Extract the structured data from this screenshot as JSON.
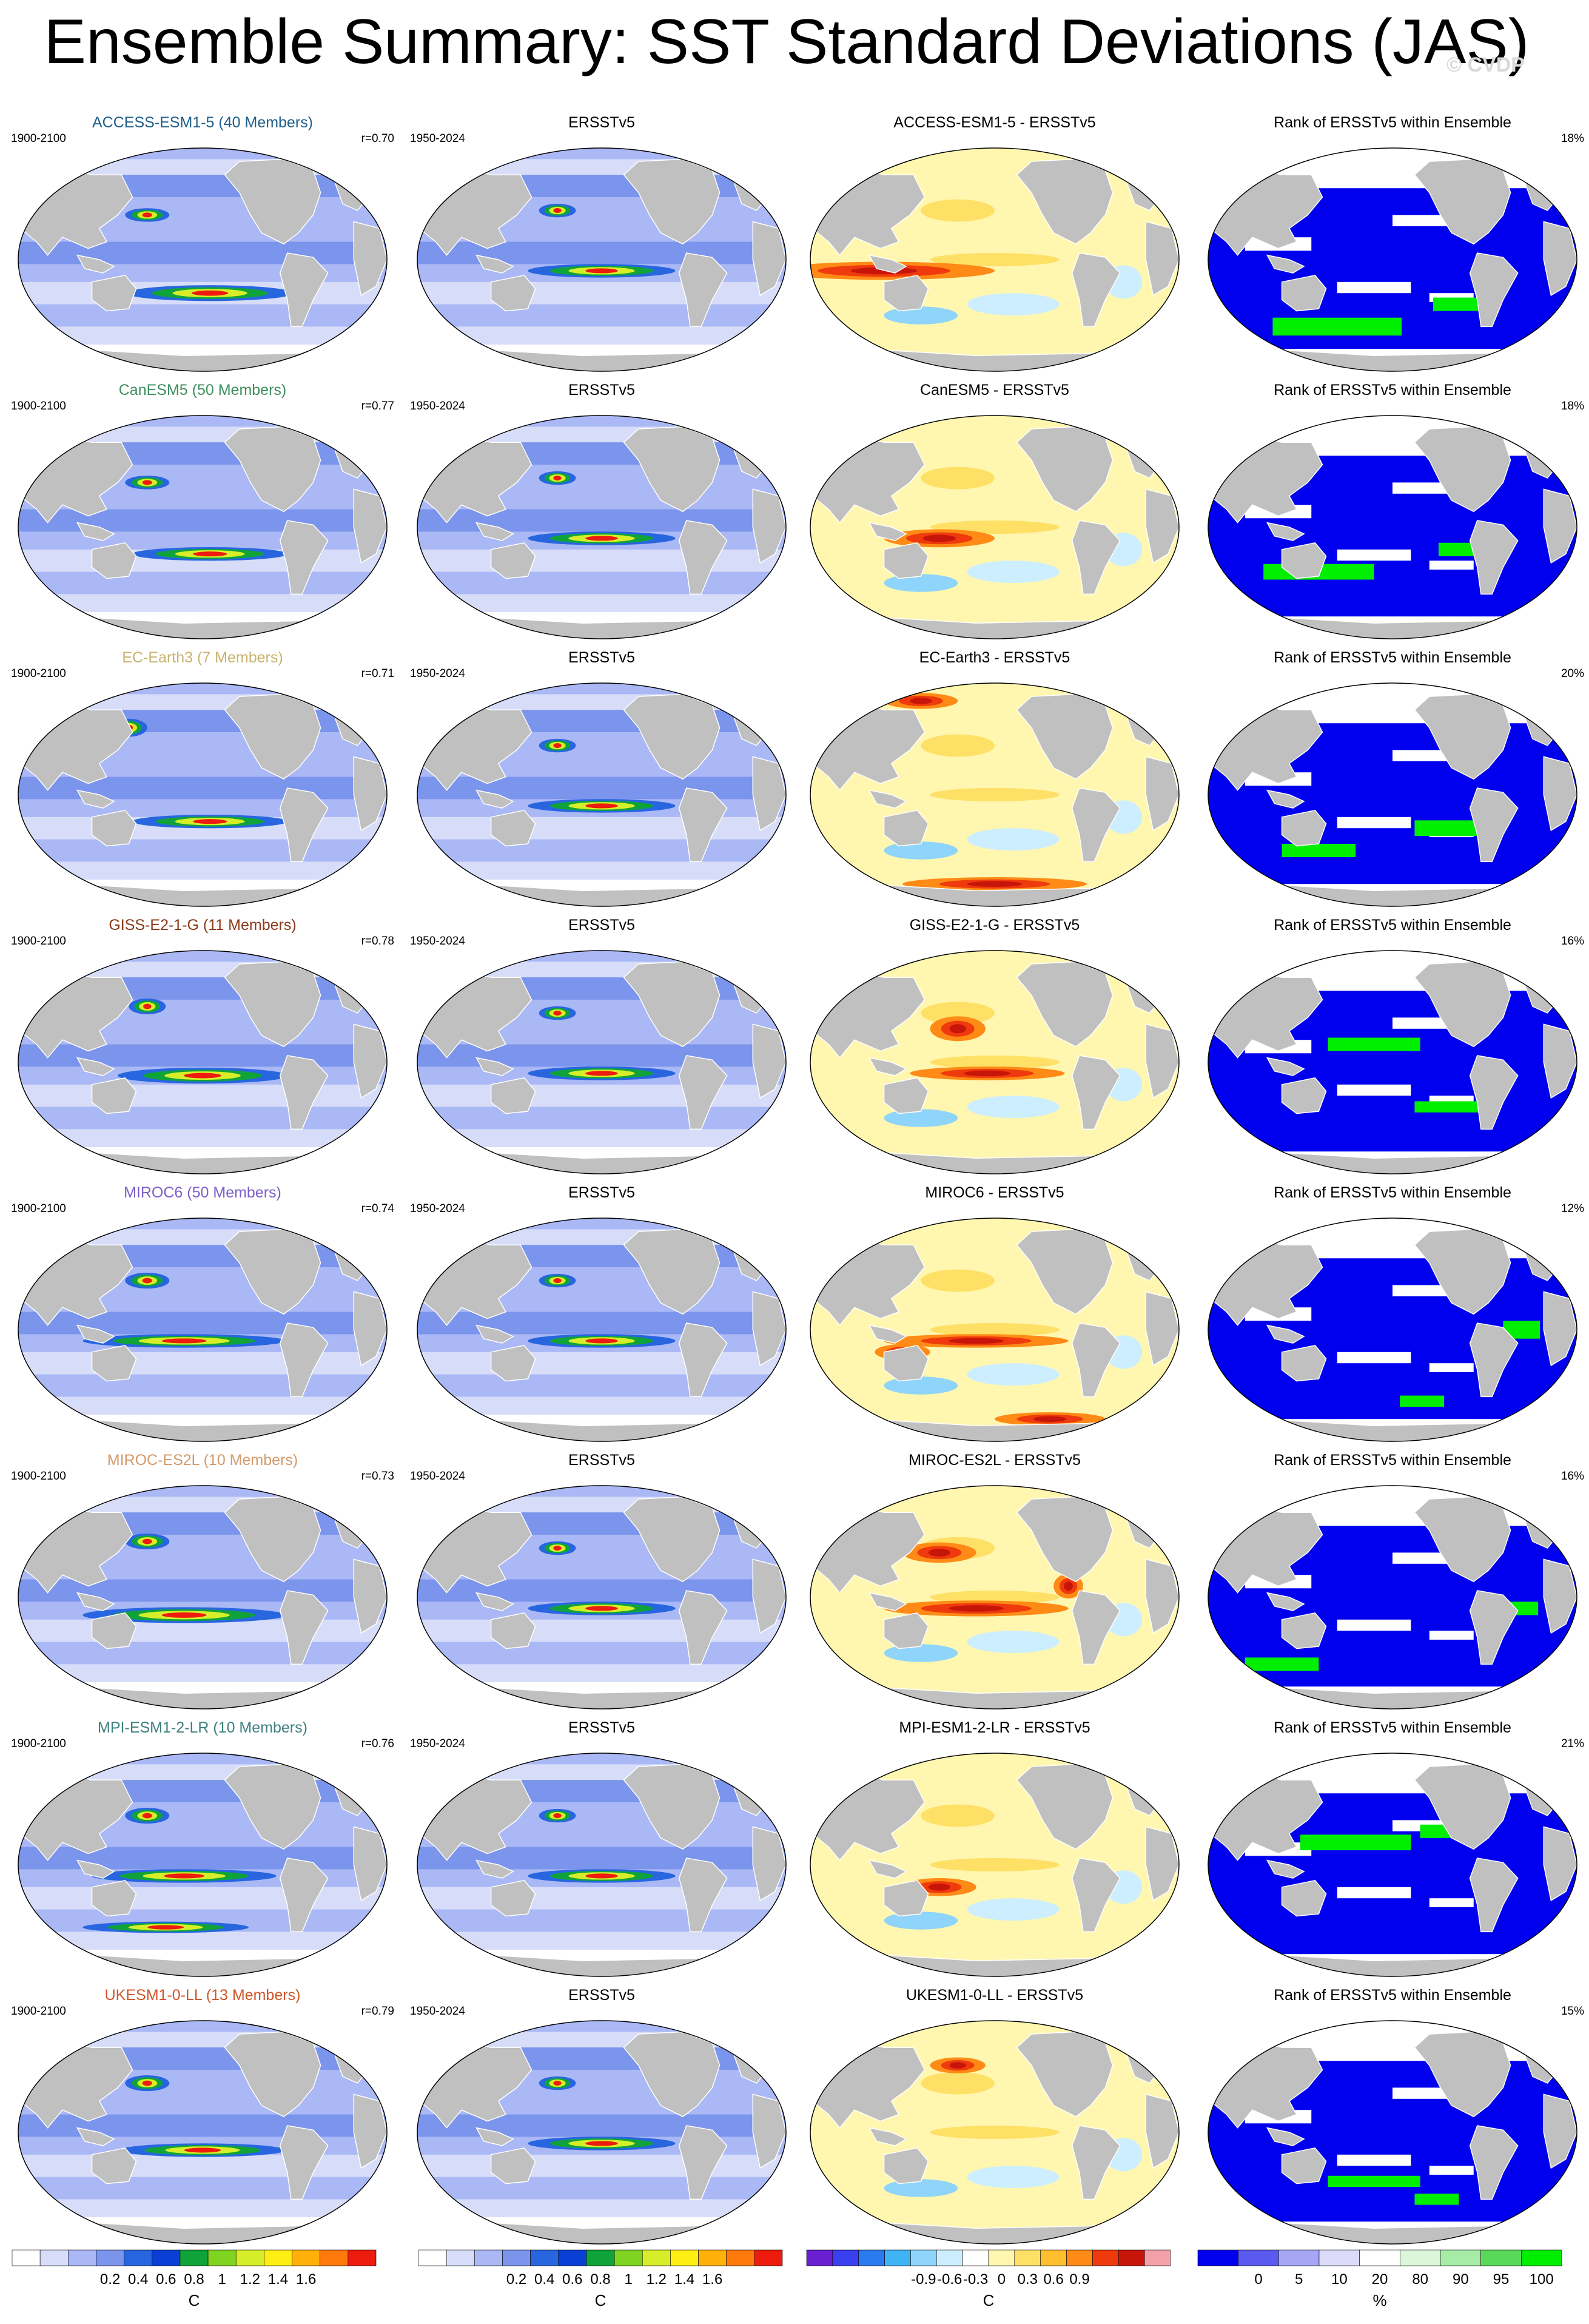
{
  "title": "Ensemble Summary: SST Standard Deviations (JAS)",
  "watermark": "© CVDP",
  "chart_data": [
    {
      "type": "heatmap",
      "row": 0,
      "col": 0,
      "title": "ACCESS-ESM1-5 (40 Members)",
      "left_label": "1900-2100",
      "right_label": "r=0.70",
      "title_color": "#1f5f8b",
      "scheme": "std",
      "hot": [
        [
          0.52,
          0.65,
          0.45,
          0.06
        ],
        [
          0.35,
          0.3,
          0.12,
          0.05
        ],
        [
          0.72,
          0.22,
          0.1,
          0.06
        ]
      ]
    },
    {
      "type": "heatmap",
      "row": 0,
      "col": 1,
      "title": "ERSSTv5",
      "left_label": "1950-2024",
      "right_label": "",
      "title_color": "#000000",
      "scheme": "std",
      "hot": [
        [
          0.5,
          0.55,
          0.4,
          0.05
        ],
        [
          0.38,
          0.28,
          0.1,
          0.05
        ]
      ]
    },
    {
      "type": "heatmap",
      "row": 0,
      "col": 2,
      "title": "ACCESS-ESM1-5 - ERSSTv5",
      "left_label": "",
      "right_label": "",
      "title_color": "#000000",
      "scheme": "diff",
      "hot": [
        [
          0.2,
          0.55,
          0.6,
          0.07
        ],
        [
          0.72,
          0.22,
          0.12,
          0.07
        ]
      ]
    },
    {
      "type": "heatmap",
      "row": 0,
      "col": 3,
      "title": "Rank of ERSSTv5 within Ensemble",
      "left_label": "",
      "right_label": "18%",
      "title_color": "#000000",
      "scheme": "rank",
      "hot": [
        [
          0.35,
          0.8,
          0.35,
          0.08
        ],
        [
          0.7,
          0.7,
          0.18,
          0.06
        ]
      ]
    },
    {
      "type": "heatmap",
      "row": 1,
      "col": 0,
      "title": "CanESM5 (50 Members)",
      "left_label": "1900-2100",
      "right_label": "r=0.77",
      "title_color": "#3f8f5f",
      "scheme": "std",
      "hot": [
        [
          0.52,
          0.62,
          0.42,
          0.05
        ],
        [
          0.35,
          0.3,
          0.12,
          0.05
        ],
        [
          0.74,
          0.2,
          0.08,
          0.06
        ]
      ]
    },
    {
      "type": "heatmap",
      "row": 1,
      "col": 1,
      "title": "ERSSTv5",
      "left_label": "1950-2024",
      "right_label": "",
      "title_color": "#000000",
      "scheme": "std",
      "hot": [
        [
          0.5,
          0.55,
          0.4,
          0.05
        ],
        [
          0.38,
          0.28,
          0.1,
          0.05
        ]
      ]
    },
    {
      "type": "heatmap",
      "row": 1,
      "col": 2,
      "title": "CanESM5 - ERSSTv5",
      "left_label": "",
      "right_label": "",
      "title_color": "#000000",
      "scheme": "diff",
      "hot": [
        [
          0.72,
          0.2,
          0.1,
          0.07
        ],
        [
          0.35,
          0.55,
          0.3,
          0.07
        ]
      ]
    },
    {
      "type": "heatmap",
      "row": 1,
      "col": 3,
      "title": "Rank of ERSSTv5 within Ensemble",
      "left_label": "",
      "right_label": "18%",
      "title_color": "#000000",
      "scheme": "rank",
      "hot": [
        [
          0.3,
          0.7,
          0.3,
          0.07
        ],
        [
          0.7,
          0.6,
          0.15,
          0.06
        ]
      ]
    },
    {
      "type": "heatmap",
      "row": 2,
      "col": 0,
      "title": "EC-Earth3 (7 Members)",
      "left_label": "1900-2100",
      "right_label": "r=0.71",
      "title_color": "#c8b46e",
      "scheme": "std",
      "hot": [
        [
          0.52,
          0.62,
          0.42,
          0.05
        ],
        [
          0.3,
          0.2,
          0.1,
          0.07
        ],
        [
          0.72,
          0.16,
          0.08,
          0.06
        ]
      ]
    },
    {
      "type": "heatmap",
      "row": 2,
      "col": 1,
      "title": "ERSSTv5",
      "left_label": "1950-2024",
      "right_label": "",
      "title_color": "#000000",
      "scheme": "std",
      "hot": [
        [
          0.5,
          0.55,
          0.4,
          0.05
        ],
        [
          0.38,
          0.28,
          0.1,
          0.05
        ]
      ]
    },
    {
      "type": "heatmap",
      "row": 2,
      "col": 2,
      "title": "EC-Earth3 - ERSSTv5",
      "left_label": "",
      "right_label": "",
      "title_color": "#000000",
      "scheme": "diff",
      "hot": [
        [
          0.3,
          0.08,
          0.2,
          0.06
        ],
        [
          0.72,
          0.2,
          0.1,
          0.06
        ],
        [
          0.5,
          0.9,
          0.5,
          0.05
        ]
      ]
    },
    {
      "type": "heatmap",
      "row": 2,
      "col": 3,
      "title": "Rank of ERSSTv5 within Ensemble",
      "left_label": "",
      "right_label": "20%",
      "title_color": "#000000",
      "scheme": "rank",
      "hot": [
        [
          0.3,
          0.75,
          0.2,
          0.06
        ],
        [
          0.65,
          0.65,
          0.18,
          0.07
        ]
      ]
    },
    {
      "type": "heatmap",
      "row": 3,
      "col": 0,
      "title": "GISS-E2-1-G (11 Members)",
      "left_label": "1900-2100",
      "right_label": "r=0.78",
      "title_color": "#8b3a1a",
      "scheme": "std",
      "hot": [
        [
          0.5,
          0.56,
          0.46,
          0.06
        ],
        [
          0.35,
          0.25,
          0.1,
          0.06
        ],
        [
          0.72,
          0.22,
          0.08,
          0.05
        ]
      ]
    },
    {
      "type": "heatmap",
      "row": 3,
      "col": 1,
      "title": "ERSSTv5",
      "left_label": "1950-2024",
      "right_label": "",
      "title_color": "#000000",
      "scheme": "std",
      "hot": [
        [
          0.5,
          0.55,
          0.4,
          0.05
        ],
        [
          0.38,
          0.28,
          0.1,
          0.05
        ]
      ]
    },
    {
      "type": "heatmap",
      "row": 3,
      "col": 2,
      "title": "GISS-E2-1-G - ERSSTv5",
      "left_label": "",
      "right_label": "",
      "title_color": "#000000",
      "scheme": "diff",
      "hot": [
        [
          0.48,
          0.55,
          0.42,
          0.05
        ],
        [
          0.4,
          0.35,
          0.15,
          0.1
        ]
      ]
    },
    {
      "type": "heatmap",
      "row": 3,
      "col": 3,
      "title": "Rank of ERSSTv5 within Ensemble",
      "left_label": "",
      "right_label": "16%",
      "title_color": "#000000",
      "scheme": "rank",
      "hot": [
        [
          0.45,
          0.42,
          0.25,
          0.06
        ],
        [
          0.65,
          0.7,
          0.18,
          0.05
        ]
      ]
    },
    {
      "type": "heatmap",
      "row": 4,
      "col": 0,
      "title": "MIROC6 (50 Members)",
      "left_label": "1900-2100",
      "right_label": "r=0.74",
      "title_color": "#7b5fc9",
      "scheme": "std",
      "hot": [
        [
          0.45,
          0.55,
          0.55,
          0.05
        ],
        [
          0.35,
          0.28,
          0.12,
          0.06
        ],
        [
          0.74,
          0.2,
          0.08,
          0.05
        ]
      ]
    },
    {
      "type": "heatmap",
      "row": 4,
      "col": 1,
      "title": "ERSSTv5",
      "left_label": "1950-2024",
      "right_label": "",
      "title_color": "#000000",
      "scheme": "std",
      "hot": [
        [
          0.5,
          0.55,
          0.4,
          0.05
        ],
        [
          0.38,
          0.28,
          0.1,
          0.05
        ]
      ]
    },
    {
      "type": "heatmap",
      "row": 4,
      "col": 2,
      "title": "MIROC6 - ERSSTv5",
      "left_label": "",
      "right_label": "",
      "title_color": "#000000",
      "scheme": "diff",
      "hot": [
        [
          0.45,
          0.55,
          0.5,
          0.05
        ],
        [
          0.25,
          0.6,
          0.15,
          0.06
        ],
        [
          0.65,
          0.9,
          0.3,
          0.05
        ]
      ]
    },
    {
      "type": "heatmap",
      "row": 4,
      "col": 3,
      "title": "Rank of ERSSTv5 within Ensemble",
      "left_label": "",
      "right_label": "12%",
      "title_color": "#000000",
      "scheme": "rank",
      "hot": [
        [
          0.85,
          0.5,
          0.1,
          0.08
        ],
        [
          0.58,
          0.82,
          0.12,
          0.05
        ]
      ]
    },
    {
      "type": "heatmap",
      "row": 5,
      "col": 0,
      "title": "MIROC-ES2L (10 Members)",
      "left_label": "1900-2100",
      "right_label": "r=0.73",
      "title_color": "#d49a6a",
      "scheme": "std",
      "hot": [
        [
          0.45,
          0.58,
          0.55,
          0.06
        ],
        [
          0.35,
          0.25,
          0.12,
          0.06
        ],
        [
          0.72,
          0.22,
          0.08,
          0.05
        ]
      ]
    },
    {
      "type": "heatmap",
      "row": 5,
      "col": 1,
      "title": "ERSSTv5",
      "left_label": "1950-2024",
      "right_label": "",
      "title_color": "#000000",
      "scheme": "std",
      "hot": [
        [
          0.5,
          0.55,
          0.4,
          0.05
        ],
        [
          0.38,
          0.28,
          0.1,
          0.05
        ]
      ]
    },
    {
      "type": "heatmap",
      "row": 5,
      "col": 2,
      "title": "MIROC-ES2L - ERSSTv5",
      "left_label": "",
      "right_label": "",
      "title_color": "#000000",
      "scheme": "diff",
      "hot": [
        [
          0.45,
          0.55,
          0.5,
          0.06
        ],
        [
          0.35,
          0.3,
          0.2,
          0.08
        ],
        [
          0.7,
          0.45,
          0.08,
          0.1
        ]
      ]
    },
    {
      "type": "heatmap",
      "row": 5,
      "col": 3,
      "title": "Rank of ERSSTv5 within Ensemble",
      "left_label": "",
      "right_label": "16%",
      "title_color": "#000000",
      "scheme": "rank",
      "hot": [
        [
          0.2,
          0.8,
          0.2,
          0.06
        ],
        [
          0.82,
          0.55,
          0.15,
          0.06
        ]
      ]
    },
    {
      "type": "heatmap",
      "row": 6,
      "col": 0,
      "title": "MPI-ESM1-2-LR (10 Members)",
      "left_label": "1900-2100",
      "right_label": "r=0.76",
      "title_color": "#3f8080",
      "scheme": "std",
      "hot": [
        [
          0.45,
          0.55,
          0.5,
          0.05
        ],
        [
          0.35,
          0.28,
          0.12,
          0.06
        ],
        [
          0.4,
          0.78,
          0.45,
          0.04
        ]
      ]
    },
    {
      "type": "heatmap",
      "row": 6,
      "col": 1,
      "title": "ERSSTv5",
      "left_label": "1950-2024",
      "right_label": "",
      "title_color": "#000000",
      "scheme": "std",
      "hot": [
        [
          0.5,
          0.55,
          0.4,
          0.05
        ],
        [
          0.38,
          0.28,
          0.1,
          0.05
        ]
      ]
    },
    {
      "type": "heatmap",
      "row": 6,
      "col": 2,
      "title": "MPI-ESM1-2-LR - ERSSTv5",
      "left_label": "",
      "right_label": "",
      "title_color": "#000000",
      "scheme": "diff",
      "hot": [
        [
          0.72,
          0.2,
          0.1,
          0.06
        ],
        [
          0.35,
          0.6,
          0.2,
          0.07
        ]
      ]
    },
    {
      "type": "heatmap",
      "row": 6,
      "col": 3,
      "title": "Rank of ERSSTv5 within Ensemble",
      "left_label": "",
      "right_label": "21%",
      "title_color": "#000000",
      "scheme": "rank",
      "hot": [
        [
          0.4,
          0.4,
          0.3,
          0.07
        ],
        [
          0.65,
          0.35,
          0.15,
          0.06
        ]
      ]
    },
    {
      "type": "heatmap",
      "row": 7,
      "col": 0,
      "title": "UKESM1-0-LL (13 Members)",
      "left_label": "1900-2100",
      "right_label": "r=0.79",
      "title_color": "#d0562a",
      "scheme": "std",
      "hot": [
        [
          0.5,
          0.58,
          0.45,
          0.05
        ],
        [
          0.35,
          0.28,
          0.12,
          0.06
        ],
        [
          0.72,
          0.22,
          0.08,
          0.05
        ]
      ]
    },
    {
      "type": "heatmap",
      "row": 7,
      "col": 1,
      "title": "ERSSTv5",
      "left_label": "1950-2024",
      "right_label": "",
      "title_color": "#000000",
      "scheme": "std",
      "hot": [
        [
          0.5,
          0.55,
          0.4,
          0.05
        ],
        [
          0.38,
          0.28,
          0.1,
          0.05
        ]
      ]
    },
    {
      "type": "heatmap",
      "row": 7,
      "col": 2,
      "title": "UKESM1-0-LL - ERSSTv5",
      "left_label": "",
      "right_label": "",
      "title_color": "#000000",
      "scheme": "diff",
      "hot": [
        [
          0.72,
          0.22,
          0.1,
          0.06
        ],
        [
          0.4,
          0.2,
          0.15,
          0.06
        ]
      ]
    },
    {
      "type": "heatmap",
      "row": 7,
      "col": 3,
      "title": "Rank of ERSSTv5 within Ensemble",
      "left_label": "",
      "right_label": "15%",
      "title_color": "#000000",
      "scheme": "rank",
      "hot": [
        [
          0.45,
          0.72,
          0.25,
          0.05
        ],
        [
          0.62,
          0.8,
          0.12,
          0.05
        ]
      ]
    }
  ],
  "colorbars": [
    {
      "id": "cb1",
      "unit": "C",
      "labels": [
        "0.2",
        "0.4",
        "0.6",
        "0.8",
        "1",
        "1.2",
        "1.4",
        "1.6"
      ],
      "colors": [
        "#ffffff",
        "#d7ddf9",
        "#aab8f5",
        "#7b94ec",
        "#2866e0",
        "#0a3fd6",
        "#10a33a",
        "#7fd321",
        "#d6ee2a",
        "#ffee14",
        "#ffb10a",
        "#ff7a0a",
        "#ee1c0e"
      ]
    },
    {
      "id": "cb2",
      "unit": "C",
      "labels": [
        "0.2",
        "0.4",
        "0.6",
        "0.8",
        "1",
        "1.2",
        "1.4",
        "1.6"
      ],
      "colors": [
        "#ffffff",
        "#d7ddf9",
        "#aab8f5",
        "#7b94ec",
        "#2866e0",
        "#0a3fd6",
        "#10a33a",
        "#7fd321",
        "#d6ee2a",
        "#ffee14",
        "#ffb10a",
        "#ff7a0a",
        "#ee1c0e"
      ]
    },
    {
      "id": "cb3",
      "unit": "C",
      "labels": [
        "-0.9",
        "-0.6",
        "-0.3",
        "0",
        "0.3",
        "0.6",
        "0.9"
      ],
      "colors": [
        "#6a1fd0",
        "#3a3ff0",
        "#2a7bf0",
        "#3fb4f5",
        "#8fd4fa",
        "#cdeefe",
        "#ffffff",
        "#fff7b0",
        "#ffe066",
        "#ffbf2e",
        "#ff8a16",
        "#ee3a0c",
        "#c8150a",
        "#f4a0a8"
      ]
    },
    {
      "id": "cb4",
      "unit": "%",
      "labels": [
        "0",
        "5",
        "10",
        "20",
        "80",
        "90",
        "95",
        "100"
      ],
      "colors": [
        "#0000ee",
        "#5a5af0",
        "#a6a6f5",
        "#dcdcfa",
        "#ffffff",
        "#dcf6dc",
        "#a6eca6",
        "#5ad85a",
        "#00ee00"
      ]
    }
  ]
}
